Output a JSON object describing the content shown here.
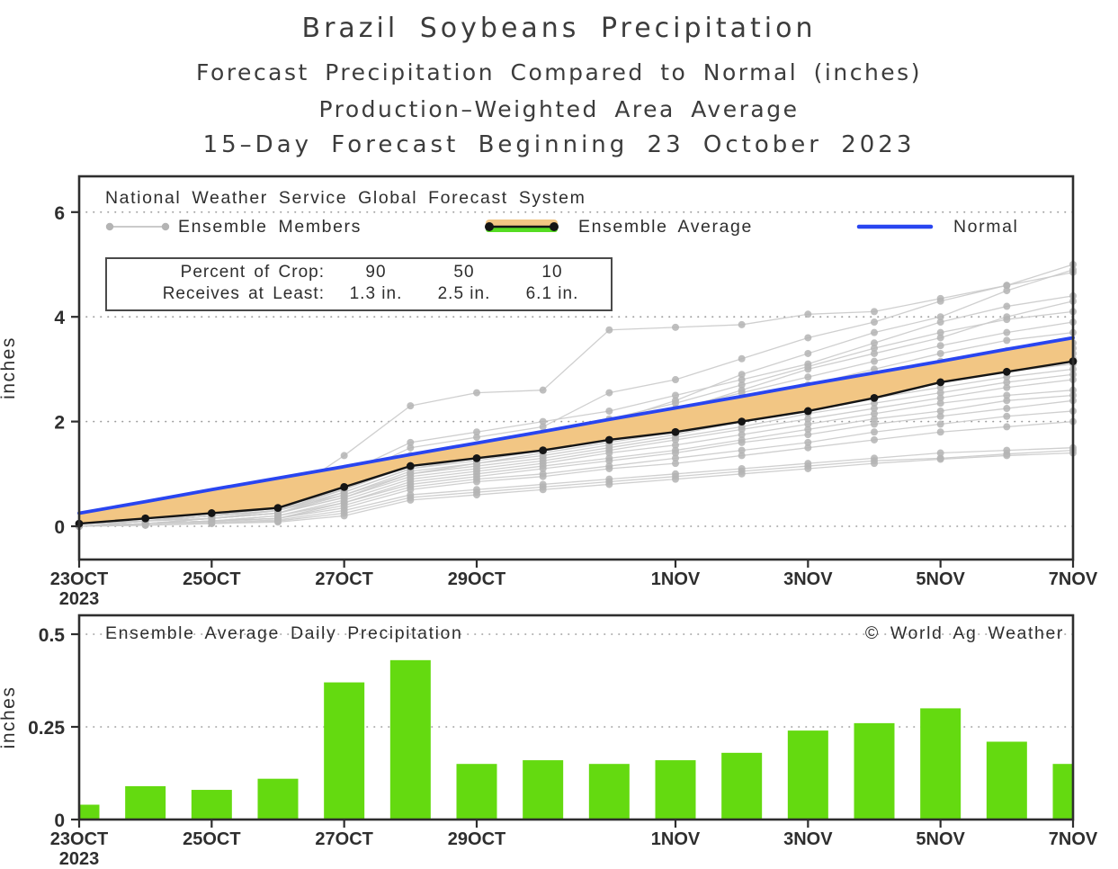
{
  "titles": {
    "main": "Brazil Soybeans Precipitation",
    "sub1": "Forecast Precipitation Compared to Normal (inches)",
    "sub2": "Production–Weighted Area Average",
    "sub3": "15–Day Forecast Beginning 23 October 2023"
  },
  "colors": {
    "normal_blue": "#2945f0",
    "band_orange": "#f2c684",
    "average_black": "#151515",
    "member_line_gray": "#cacaca",
    "member_dot_gray": "#b4b4b4",
    "bar_green": "#64da10",
    "legend_green": "#55dd22",
    "grid_gray": "#999999",
    "frame_dark": "#2e2e2e",
    "text_dark": "#3c3c3c"
  },
  "top_chart": {
    "legend": {
      "title": "National Weather Service Global Forecast System",
      "members_label": "Ensemble Members",
      "average_label": "Ensemble Average",
      "normal_label": "Normal"
    },
    "crop_box": {
      "row1_label": "Percent of Crop:",
      "row1_values": [
        "90",
        "50",
        "10"
      ],
      "row2_label": "Receives at Least:",
      "row2_values": [
        "1.3 in.",
        "2.5 in.",
        "6.1 in."
      ]
    },
    "ylabel": "inches",
    "ytick_labels": [
      "0",
      "2",
      "4",
      "6"
    ]
  },
  "bottom_chart": {
    "title": "Ensemble Average Daily Precipitation",
    "credit": "© World Ag Weather",
    "ylabel": "inches",
    "ytick_labels": [
      "0",
      "0.25",
      "0.5"
    ]
  },
  "x_axis": {
    "ticks": [
      {
        "i": 0,
        "label": "23OCT",
        "year": "2023"
      },
      {
        "i": 2,
        "label": "25OCT"
      },
      {
        "i": 4,
        "label": "27OCT"
      },
      {
        "i": 6,
        "label": "29OCT"
      },
      {
        "i": 9,
        "label": "1NOV"
      },
      {
        "i": 11,
        "label": "3NOV"
      },
      {
        "i": 13,
        "label": "5NOV"
      },
      {
        "i": 15,
        "label": "7NOV"
      }
    ]
  },
  "chart_data": [
    {
      "type": "line",
      "title": "15-day cumulative forecast precipitation vs normal",
      "x": [
        "23OCT",
        "24OCT",
        "25OCT",
        "26OCT",
        "27OCT",
        "28OCT",
        "29OCT",
        "30OCT",
        "31OCT",
        "1NOV",
        "2NOV",
        "3NOV",
        "4NOV",
        "5NOV",
        "6NOV",
        "7NOV"
      ],
      "ylabel": "inches",
      "ylim": [
        -0.64,
        6.68
      ],
      "yticks": [
        0,
        2,
        4,
        6
      ],
      "grid": "horizontal-dotted",
      "legend_position": "top-left-inside",
      "series": [
        {
          "name": "Normal",
          "values": [
            0.25,
            0.47,
            0.7,
            0.92,
            1.14,
            1.37,
            1.59,
            1.81,
            2.04,
            2.26,
            2.48,
            2.71,
            2.93,
            3.15,
            3.38,
            3.6
          ]
        },
        {
          "name": "Ensemble Average",
          "values": [
            0.05,
            0.15,
            0.25,
            0.35,
            0.75,
            1.15,
            1.3,
            1.45,
            1.65,
            1.8,
            2.0,
            2.2,
            2.45,
            2.75,
            2.95,
            3.15
          ]
        },
        {
          "name": "Ensemble Members",
          "values_list": [
            [
              0.05,
              0.15,
              0.3,
              0.5,
              1.35,
              2.3,
              2.55,
              2.6,
              3.75,
              3.8,
              3.85,
              4.05,
              4.1,
              4.35,
              4.6,
              4.85
            ],
            [
              0.05,
              0.1,
              0.2,
              0.4,
              0.9,
              1.5,
              1.7,
              1.9,
              2.55,
              2.8,
              3.2,
              3.6,
              3.9,
              4.3,
              4.6,
              5.0
            ],
            [
              0.0,
              0.05,
              0.15,
              0.3,
              0.8,
              1.3,
              1.5,
              1.7,
              2.0,
              2.4,
              2.9,
              3.3,
              3.7,
              4.0,
              4.5,
              4.9
            ],
            [
              0.05,
              0.2,
              0.3,
              0.45,
              1.0,
              1.6,
              1.8,
              2.0,
              2.2,
              2.5,
              2.8,
              3.1,
              3.5,
              3.9,
              4.2,
              4.4
            ],
            [
              0.0,
              0.1,
              0.25,
              0.35,
              0.7,
              1.2,
              1.4,
              1.6,
              1.9,
              2.2,
              2.6,
              3.0,
              3.3,
              3.6,
              4.0,
              4.3
            ],
            [
              0.05,
              0.15,
              0.25,
              0.4,
              0.85,
              1.35,
              1.55,
              1.75,
              2.05,
              2.35,
              2.7,
              3.05,
              3.4,
              3.7,
              3.95,
              4.1
            ],
            [
              0.0,
              0.1,
              0.2,
              0.35,
              0.75,
              1.25,
              1.45,
              1.7,
              1.95,
              2.25,
              2.55,
              2.85,
              3.15,
              3.45,
              3.7,
              3.9
            ],
            [
              0.05,
              0.1,
              0.2,
              0.3,
              0.7,
              1.2,
              1.4,
              1.6,
              1.85,
              2.1,
              2.4,
              2.7,
              3.0,
              3.3,
              3.55,
              3.7
            ],
            [
              0.0,
              0.05,
              0.15,
              0.25,
              0.65,
              1.1,
              1.3,
              1.5,
              1.75,
              2.0,
              2.3,
              2.6,
              2.9,
              3.15,
              3.35,
              3.5
            ],
            [
              0.05,
              0.15,
              0.25,
              0.35,
              0.75,
              1.2,
              1.35,
              1.55,
              1.8,
              2.05,
              2.3,
              2.55,
              2.8,
              3.05,
              3.25,
              3.4
            ],
            [
              0.0,
              0.1,
              0.2,
              0.3,
              0.7,
              1.15,
              1.3,
              1.5,
              1.7,
              1.95,
              2.2,
              2.45,
              2.7,
              2.95,
              3.15,
              3.3
            ],
            [
              0.05,
              0.1,
              0.2,
              0.3,
              0.65,
              1.1,
              1.25,
              1.45,
              1.65,
              1.85,
              2.1,
              2.35,
              2.6,
              2.85,
              3.05,
              3.2
            ],
            [
              0.0,
              0.05,
              0.15,
              0.25,
              0.6,
              1.05,
              1.2,
              1.4,
              1.6,
              1.8,
              2.05,
              2.3,
              2.5,
              2.75,
              2.95,
              3.1
            ],
            [
              0.05,
              0.1,
              0.2,
              0.3,
              0.6,
              1.0,
              1.2,
              1.35,
              1.55,
              1.75,
              2.0,
              2.2,
              2.45,
              2.65,
              2.85,
              3.0
            ],
            [
              0.0,
              0.1,
              0.15,
              0.25,
              0.55,
              1.0,
              1.15,
              1.3,
              1.5,
              1.7,
              1.9,
              2.15,
              2.35,
              2.55,
              2.75,
              2.9
            ],
            [
              0.05,
              0.1,
              0.15,
              0.25,
              0.55,
              0.95,
              1.1,
              1.25,
              1.45,
              1.65,
              1.85,
              2.05,
              2.25,
              2.45,
              2.65,
              2.8
            ],
            [
              0.0,
              0.05,
              0.1,
              0.2,
              0.5,
              0.9,
              1.05,
              1.2,
              1.4,
              1.55,
              1.75,
              1.95,
              2.15,
              2.35,
              2.5,
              2.6
            ],
            [
              0.0,
              0.05,
              0.1,
              0.2,
              0.45,
              0.85,
              1.0,
              1.15,
              1.3,
              1.45,
              1.65,
              1.85,
              2.05,
              2.2,
              2.4,
              2.5
            ],
            [
              0.0,
              0.05,
              0.1,
              0.15,
              0.45,
              0.8,
              0.95,
              1.1,
              1.25,
              1.4,
              1.6,
              1.75,
              1.95,
              2.1,
              2.25,
              2.4
            ],
            [
              0.0,
              0.05,
              0.1,
              0.15,
              0.4,
              0.75,
              0.9,
              1.0,
              1.15,
              1.3,
              1.45,
              1.6,
              1.8,
              1.95,
              2.1,
              2.2
            ],
            [
              0.0,
              0.05,
              0.1,
              0.15,
              0.35,
              0.7,
              0.85,
              0.95,
              1.1,
              1.2,
              1.35,
              1.5,
              1.65,
              1.8,
              1.9,
              2.0
            ],
            [
              0.0,
              0.05,
              0.08,
              0.12,
              0.3,
              0.6,
              0.7,
              0.8,
              0.9,
              1.0,
              1.1,
              1.2,
              1.3,
              1.4,
              1.45,
              1.5
            ],
            [
              0.0,
              0.02,
              0.06,
              0.1,
              0.25,
              0.55,
              0.65,
              0.75,
              0.85,
              0.95,
              1.05,
              1.15,
              1.25,
              1.3,
              1.38,
              1.45
            ],
            [
              0.0,
              0.02,
              0.05,
              0.08,
              0.2,
              0.5,
              0.6,
              0.7,
              0.8,
              0.9,
              1.0,
              1.1,
              1.2,
              1.28,
              1.35,
              1.4
            ]
          ]
        }
      ],
      "band": {
        "between": [
          "Ensemble Average",
          "Normal"
        ],
        "color": "#f2c684"
      }
    },
    {
      "type": "bar",
      "title": "Ensemble Average Daily Precipitation",
      "categories": [
        "23OCT",
        "24OCT",
        "25OCT",
        "26OCT",
        "27OCT",
        "28OCT",
        "29OCT",
        "30OCT",
        "31OCT",
        "1NOV",
        "2NOV",
        "3NOV",
        "4NOV",
        "5NOV",
        "6NOV",
        "7NOV"
      ],
      "values": [
        0.04,
        0.09,
        0.08,
        0.11,
        0.37,
        0.43,
        0.15,
        0.16,
        0.15,
        0.16,
        0.18,
        0.24,
        0.26,
        0.3,
        0.21,
        0.15
      ],
      "ylabel": "inches",
      "ylim": [
        0,
        0.55
      ],
      "yticks": [
        0,
        0.25,
        0.5
      ],
      "grid": "horizontal-dotted"
    }
  ]
}
